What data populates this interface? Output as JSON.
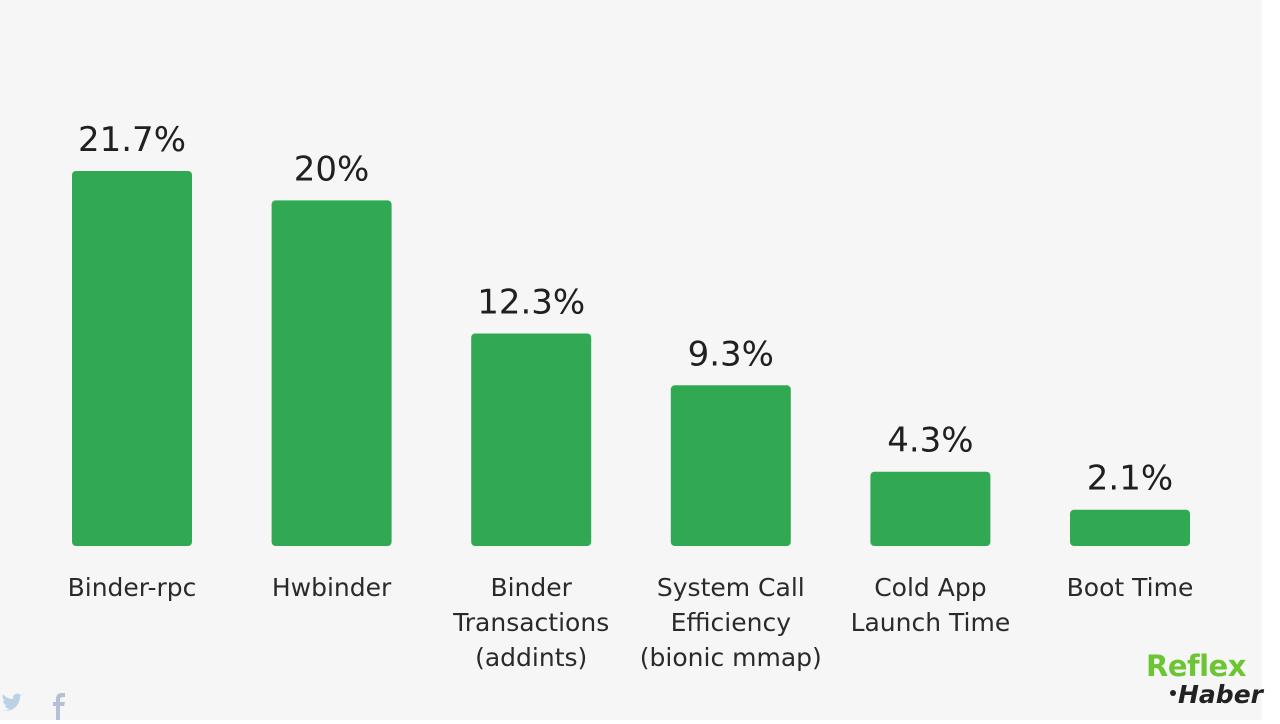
{
  "chart_data": {
    "type": "bar",
    "title": "",
    "xlabel": "",
    "ylabel": "",
    "ylim": [
      0,
      25
    ],
    "grid": false,
    "color": "#31a952",
    "categories": [
      [
        "Binder-rpc"
      ],
      [
        "Hwbinder"
      ],
      [
        "Binder",
        "Transactions",
        "(addints)"
      ],
      [
        "System Call",
        "Efficiency",
        "(bionic mmap)"
      ],
      [
        "Cold App",
        "Launch Time"
      ],
      [
        "Boot Time"
      ]
    ],
    "values": [
      21.7,
      20,
      12.3,
      9.3,
      4.3,
      2.1
    ],
    "value_labels": [
      "21.7%",
      "20%",
      "12.3%",
      "9.3%",
      "4.3%",
      "2.1%"
    ]
  },
  "watermark": {
    "brand_top": "Reflex",
    "brand_bottom": "Haber",
    "brand_color": "#6cc532",
    "social_icons": [
      "twitter-icon",
      "facebook-icon"
    ]
  }
}
